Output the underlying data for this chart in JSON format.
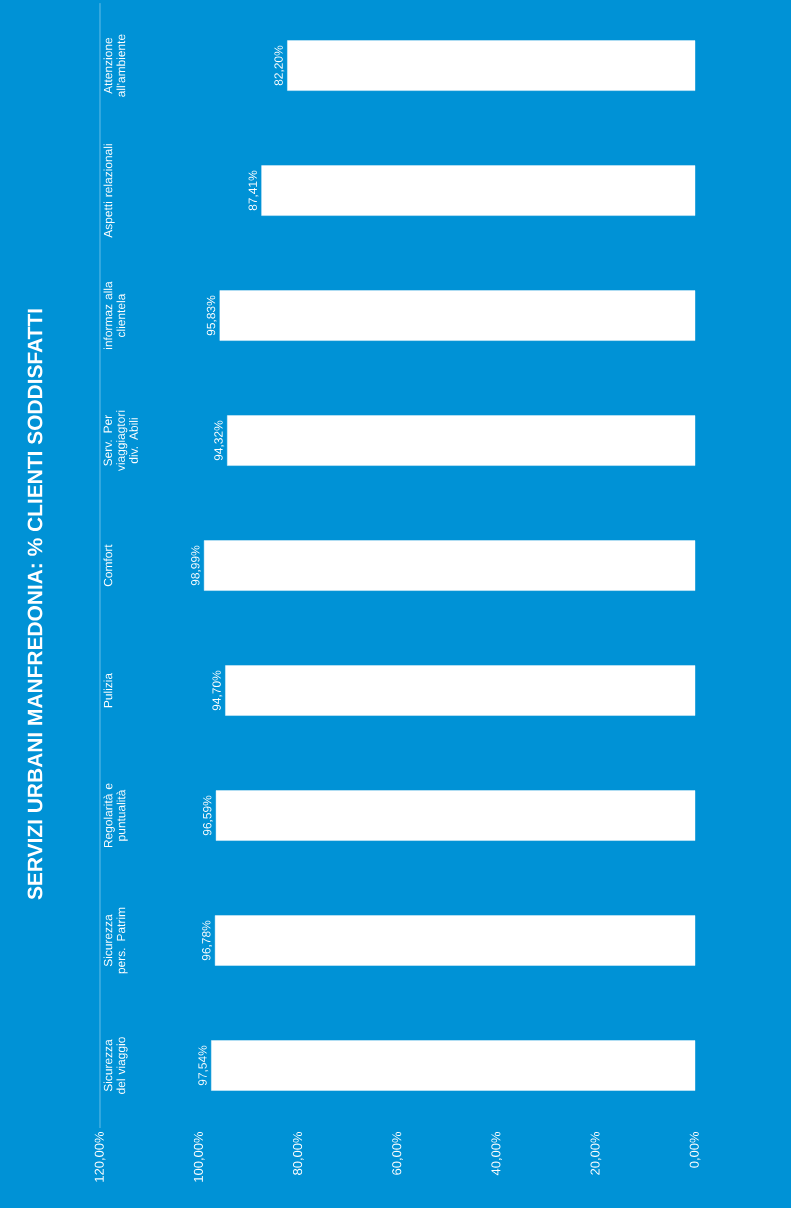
{
  "chart_data": {
    "type": "bar",
    "orientation": "horizontal",
    "title": "SERVIZI URBANI  MANFREDONIA: % CLIENTI SODDISFATTI",
    "categories": [
      "Attenzione all'ambiente",
      "Aspetti relazionali",
      "informaz alla clientela",
      "Serv. Per viaggiagtori div. Abili",
      "Comfort",
      "Pulizia",
      "Regolarità e puntualità",
      "Sicurezza pers. Patrim",
      "Sicurezza del viaggio"
    ],
    "values": [
      82.2,
      87.41,
      95.83,
      94.32,
      98.99,
      94.7,
      96.59,
      96.78,
      97.54
    ],
    "value_labels": [
      "82,20%",
      "87,41%",
      "95,83%",
      "94,32%",
      "98,99%",
      "94,70%",
      "96,59%",
      "96,78%",
      "97,54%"
    ],
    "color": "#ffffff",
    "xlim": [
      120,
      0
    ],
    "xticks": [
      {
        "value": 0,
        "label": "0,00%"
      },
      {
        "value": 20,
        "label": "20,00%"
      },
      {
        "value": 40,
        "label": "40,00%"
      },
      {
        "value": 60,
        "label": "60,00%"
      },
      {
        "value": 80,
        "label": "80,00%"
      },
      {
        "value": 100,
        "label": "100,00%"
      },
      {
        "value": 120,
        "label": "120,00%"
      }
    ]
  }
}
